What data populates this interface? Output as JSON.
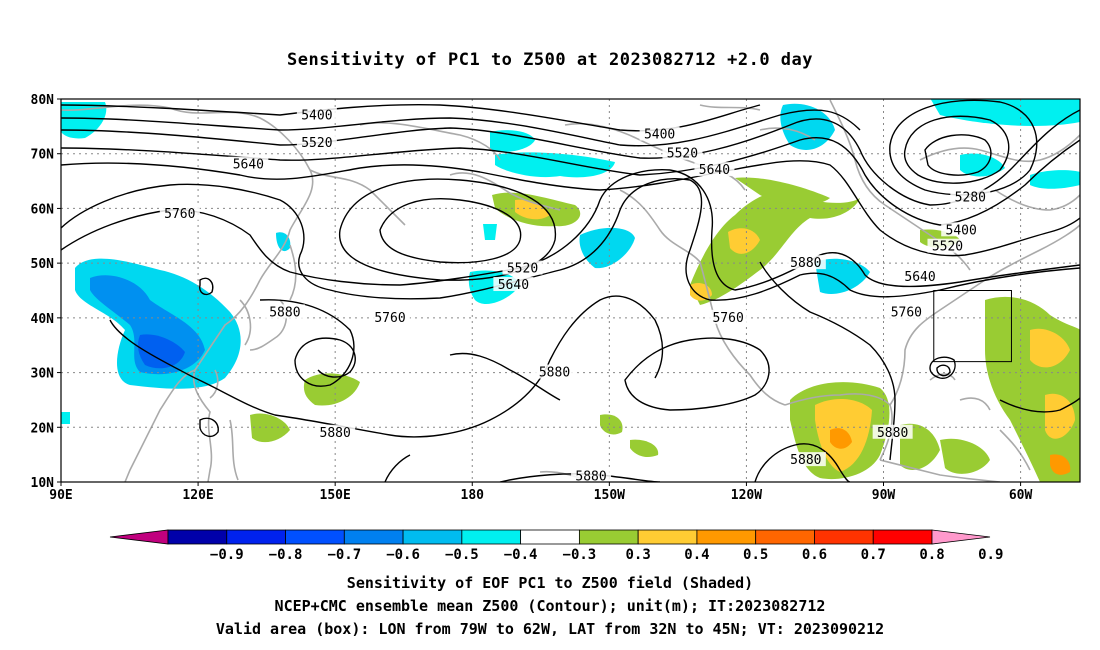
{
  "title": "Sensitivity of PC1 to Z500 at 2023082712 +2.0 day",
  "footer": {
    "line1": "Sensitivity of EOF PC1 to Z500 field (Shaded)",
    "line2": "NCEP+CMC ensemble mean Z500 (Contour); unit(m); IT:2023082712",
    "line3": "Valid area (box): LON from 79W to 62W, LAT from 32N to 45N; VT: 2023090212"
  },
  "map": {
    "lon_ticks": [
      {
        "lon": 90,
        "label": "90E"
      },
      {
        "lon": 120,
        "label": "120E"
      },
      {
        "lon": 150,
        "label": "150E"
      },
      {
        "lon": 180,
        "label": "180"
      },
      {
        "lon": 210,
        "label": "150W"
      },
      {
        "lon": 240,
        "label": "120W"
      },
      {
        "lon": 270,
        "label": "90W"
      },
      {
        "lon": 300,
        "label": "60W"
      }
    ],
    "lat_ticks": [
      {
        "lat": 80,
        "label": "80N"
      },
      {
        "lat": 70,
        "label": "70N"
      },
      {
        "lat": 60,
        "label": "60N"
      },
      {
        "lat": 50,
        "label": "50N"
      },
      {
        "lat": 40,
        "label": "40N"
      },
      {
        "lat": 30,
        "label": "30N"
      },
      {
        "lat": 20,
        "label": "20N"
      },
      {
        "lat": 10,
        "label": "10N"
      }
    ],
    "lon_range": [
      90,
      313
    ],
    "lat_range": [
      10,
      80
    ],
    "valid_box": {
      "lon_min": 281,
      "lon_max": 298,
      "lat_min": 32,
      "lat_max": 45
    },
    "contour_labels": [
      {
        "text": "5400",
        "lon": 146,
        "lat": 77
      },
      {
        "text": "5400",
        "lon": 221,
        "lat": 73.5
      },
      {
        "text": "5520",
        "lon": 146,
        "lat": 72
      },
      {
        "text": "5520",
        "lon": 226,
        "lat": 70
      },
      {
        "text": "5640",
        "lon": 131,
        "lat": 68
      },
      {
        "text": "5640",
        "lon": 233,
        "lat": 67
      },
      {
        "text": "5760",
        "lon": 116,
        "lat": 59
      },
      {
        "text": "5280",
        "lon": 289,
        "lat": 62
      },
      {
        "text": "5400",
        "lon": 287,
        "lat": 56
      },
      {
        "text": "5520",
        "lon": 284,
        "lat": 53
      },
      {
        "text": "5640",
        "lon": 278,
        "lat": 47.5
      },
      {
        "text": "5760",
        "lon": 275,
        "lat": 41
      },
      {
        "text": "5880",
        "lon": 253,
        "lat": 50
      },
      {
        "text": "5520",
        "lon": 191,
        "lat": 49
      },
      {
        "text": "5640",
        "lon": 189,
        "lat": 46
      },
      {
        "text": "5760",
        "lon": 162,
        "lat": 40
      },
      {
        "text": "5880",
        "lon": 139,
        "lat": 41
      },
      {
        "text": "5760",
        "lon": 236,
        "lat": 40
      },
      {
        "text": "5880",
        "lon": 198,
        "lat": 30
      },
      {
        "text": "5880",
        "lon": 150,
        "lat": 19
      },
      {
        "text": "5880",
        "lon": 206,
        "lat": 11
      },
      {
        "text": "5880",
        "lon": 253,
        "lat": 14
      },
      {
        "text": "5880",
        "lon": 272,
        "lat": 19
      }
    ]
  },
  "colorbar": {
    "labels": [
      "−0.9",
      "−0.8",
      "−0.7",
      "−0.6",
      "−0.5",
      "−0.4",
      "−0.3",
      "0.3",
      "0.4",
      "0.5",
      "0.6",
      "0.7",
      "0.8",
      "0.9"
    ],
    "colors": [
      "#c0007e",
      "#0000aa",
      "#0022ee",
      "#0050ff",
      "#0080f0",
      "#00bcf0",
      "#00f0f0",
      "#ffffff",
      "#99cc33",
      "#ffcc33",
      "#ff9900",
      "#ff6600",
      "#ff3300",
      "#ff0000",
      "#ff99cc"
    ]
  }
}
